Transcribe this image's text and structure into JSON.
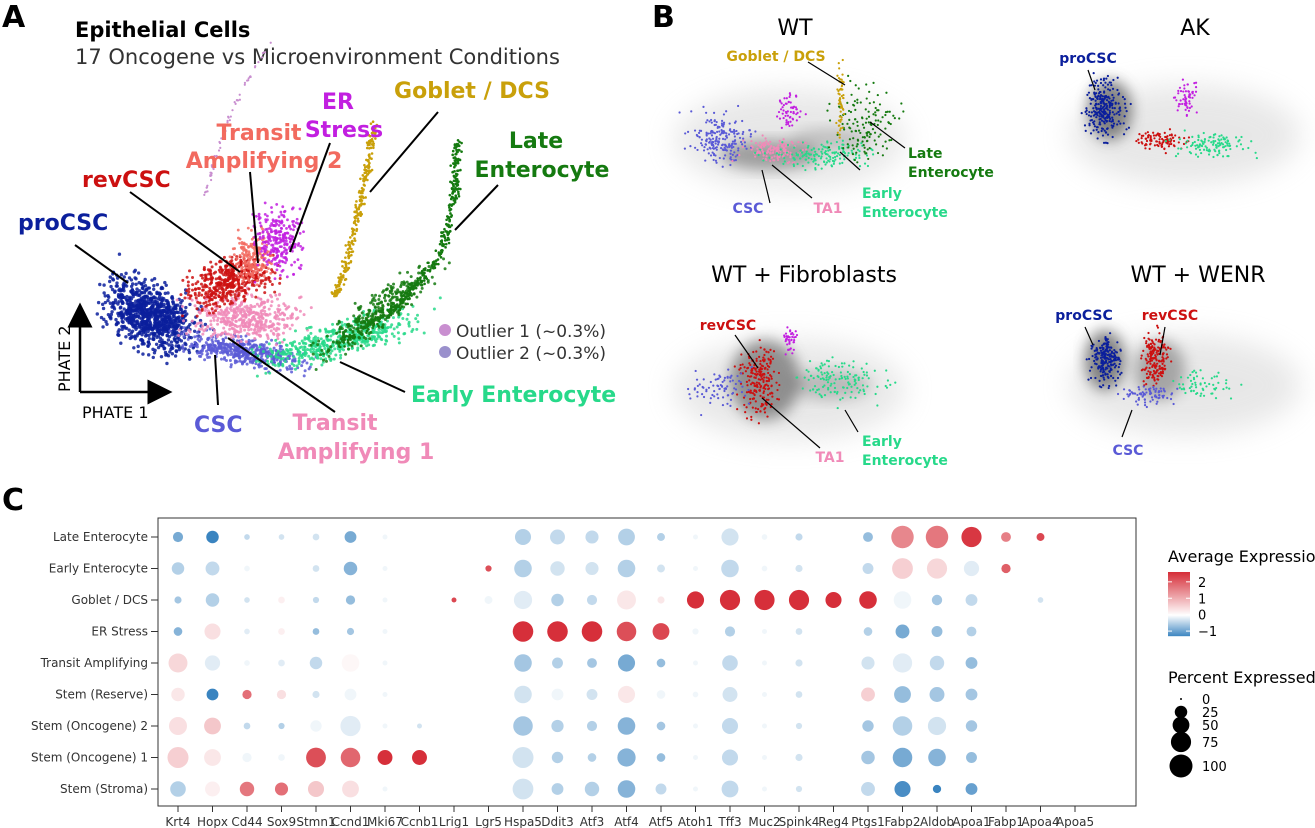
{
  "panel_letters": [
    "A",
    "B",
    "C"
  ],
  "panel_a": {
    "title": "Epithelial Cells",
    "subtitle": "17 Oncogene vs Microenvironment Conditions",
    "axis_x_label": "PHATE 1",
    "axis_y_label": "PHATE 2",
    "clusters": [
      {
        "label": "proCSC",
        "color": "#0b1f9c"
      },
      {
        "label": "revCSC",
        "color": "#cc1010"
      },
      {
        "label": "Transit Amplifying 2",
        "line1": "Transit",
        "line2": "Amplifying 2",
        "color": "#f26a5f"
      },
      {
        "label": "ER Stress",
        "line1": "ER",
        "line2": "Stress",
        "color": "#c21fe0"
      },
      {
        "label": "Goblet / DCS",
        "color": "#c9a00a"
      },
      {
        "label": "Late Enterocyte",
        "line1": "Late",
        "line2": "Enterocyte",
        "color": "#157a10"
      },
      {
        "label": "Early Enterocyte",
        "color": "#27d98a"
      },
      {
        "label": "CSC",
        "color": "#5a5ad6"
      },
      {
        "label": "Transit Amplifying 1",
        "line1": "Transit",
        "line2": "Amplifying 1",
        "color": "#f08ab8"
      }
    ],
    "outliers": [
      {
        "label": "Outlier 1 (~0.3%)",
        "color": "#c98fd0"
      },
      {
        "label": "Outlier 2 (~0.3%)",
        "color": "#9a90cc"
      }
    ]
  },
  "panel_b": {
    "subplots": [
      {
        "title": "WT",
        "labels": [
          "Goblet / DCS",
          "Late Enterocyte",
          "CSC",
          "TA1",
          "Early Enterocyte"
        ]
      },
      {
        "title": "AK",
        "labels": [
          "proCSC"
        ]
      },
      {
        "title": "WT + Fibroblasts",
        "labels": [
          "revCSC",
          "TA1",
          "Early Enterocyte"
        ]
      },
      {
        "title": "WT + WENR",
        "labels": [
          "proCSC",
          "revCSC",
          "CSC"
        ]
      }
    ]
  },
  "chart_data": {
    "type": "dot",
    "genes": [
      "Krt4",
      "Hopx",
      "Cd44",
      "Sox9",
      "Stmn1",
      "Ccnd1",
      "Mki67",
      "Ccnb1",
      "Lrig1",
      "Lgr5",
      "Hspa5",
      "Ddit3",
      "Atf3",
      "Atf4",
      "Atf5",
      "Atoh1",
      "Tff3",
      "Muc2",
      "Spink4",
      "Reg4",
      "Ptgs1",
      "Fabp2",
      "Aldob",
      "Apoa1",
      "Fabp1",
      "Apoa4",
      "Apoa5"
    ],
    "groups": [
      "Late Enterocyte",
      "Early Enterocyte",
      "Goblet / DCS",
      "ER Stress",
      "Transit Amplifying",
      "Stem (Reserve)",
      "Stem (Oncogene) 2",
      "Stem (Oncogene) 1",
      "Stem (Stroma)"
    ],
    "percent_expressed": [
      [
        15,
        25,
        3,
        3,
        5,
        22,
        2,
        2,
        2,
        1,
        45,
        38,
        28,
        50,
        8,
        2,
        52,
        3,
        6,
        2,
        14,
        95,
        95,
        75,
        14,
        8,
        2
      ],
      [
        25,
        32,
        3,
        3,
        5,
        30,
        2,
        2,
        2,
        4,
        55,
        35,
        28,
        55,
        8,
        2,
        55,
        3,
        6,
        2,
        18,
        80,
        75,
        40,
        12,
        2,
        2
      ],
      [
        6,
        30,
        3,
        5,
        4,
        12,
        2,
        2,
        2,
        8,
        60,
        25,
        15,
        65,
        6,
        52,
        75,
        75,
        75,
        45,
        55,
        55,
        16,
        22,
        2,
        3,
        2
      ],
      [
        10,
        45,
        3,
        5,
        5,
        6,
        2,
        2,
        2,
        2,
        78,
        78,
        78,
        70,
        50,
        4,
        15,
        2,
        5,
        2,
        10,
        32,
        18,
        14,
        3,
        2,
        2
      ],
      [
        65,
        40,
        3,
        5,
        25,
        55,
        2,
        2,
        2,
        2,
        55,
        18,
        14,
        52,
        10,
        2,
        42,
        2,
        6,
        2,
        28,
        68,
        35,
        22,
        3,
        2,
        2
      ],
      [
        30,
        22,
        12,
        12,
        6,
        22,
        2,
        2,
        2,
        2,
        55,
        22,
        18,
        52,
        10,
        3,
        38,
        2,
        5,
        2,
        32,
        50,
        38,
        22,
        3,
        2,
        2
      ],
      [
        58,
        50,
        5,
        4,
        20,
        75,
        2,
        2,
        2,
        2,
        70,
        24,
        15,
        55,
        10,
        2,
        45,
        2,
        4,
        2,
        20,
        70,
        60,
        20,
        3,
        2,
        2
      ],
      [
        82,
        50,
        12,
        5,
        72,
        70,
        38,
        38,
        2,
        2,
        82,
        20,
        10,
        60,
        10,
        2,
        45,
        2,
        6,
        2,
        30,
        70,
        55,
        18,
        3,
        2,
        2
      ],
      [
        42,
        38,
        35,
        28,
        45,
        50,
        2,
        2,
        2,
        2,
        80,
        22,
        35,
        55,
        18,
        2,
        50,
        2,
        4,
        2,
        32,
        45,
        9,
        22,
        2,
        2,
        2
      ]
    ],
    "average_expression": [
      [
        -0.9,
        -1.4,
        -0.4,
        -0.3,
        -0.3,
        -0.9,
        -0.1,
        0,
        0,
        0,
        -0.5,
        -0.4,
        -0.4,
        -0.5,
        -0.5,
        -0.1,
        -0.3,
        -0.1,
        -0.4,
        0,
        -0.7,
        1.5,
        1.7,
        2.5,
        1.6,
        2.3,
        0
      ],
      [
        -0.5,
        -0.4,
        -0.1,
        0,
        -0.3,
        -0.8,
        -0.1,
        0,
        0,
        2.2,
        -0.5,
        -0.3,
        -0.3,
        -0.5,
        -0.3,
        -0.1,
        -0.4,
        -0.1,
        -0.3,
        0,
        -0.4,
        0.6,
        0.5,
        -0.2,
        2.0,
        0,
        0
      ],
      [
        -0.6,
        -0.5,
        -0.3,
        0.2,
        -0.4,
        -0.7,
        -0.1,
        0,
        2.3,
        -0.1,
        -0.2,
        -0.5,
        -0.4,
        0.3,
        0.3,
        2.8,
        2.8,
        2.8,
        2.8,
        2.8,
        2.6,
        -0.1,
        -0.6,
        -0.4,
        0,
        -0.3,
        0
      ],
      [
        -0.8,
        0.4,
        -0.2,
        0.2,
        -0.7,
        -0.6,
        -0.1,
        0,
        0,
        0,
        2.8,
        2.8,
        2.8,
        2.2,
        2.3,
        -0.1,
        -0.5,
        -0.1,
        -0.3,
        0,
        -0.5,
        -0.9,
        -0.7,
        -0.5,
        0,
        0,
        0
      ],
      [
        0.5,
        -0.2,
        -0.1,
        -0.2,
        -0.4,
        0.1,
        -0.1,
        0,
        0,
        0,
        -0.6,
        -0.5,
        -0.6,
        -0.9,
        -0.7,
        -0.1,
        -0.4,
        -0.1,
        -0.3,
        0,
        -0.3,
        -0.2,
        -0.4,
        -0.7,
        0,
        0,
        0
      ],
      [
        0.3,
        -1.4,
        1.8,
        0.4,
        -0.3,
        -0.1,
        -0.1,
        0,
        0,
        0,
        -0.3,
        -0.1,
        -0.3,
        0.3,
        -0.1,
        -0.1,
        -0.3,
        -0.1,
        -0.3,
        0,
        0.6,
        -0.7,
        -0.6,
        -0.6,
        0,
        0,
        0
      ],
      [
        0.4,
        0.7,
        -0.4,
        -0.5,
        -0.1,
        -0.2,
        -0.1,
        -0.3,
        0,
        0,
        -0.6,
        -0.5,
        -0.5,
        -0.8,
        -0.6,
        -0.1,
        -0.4,
        -0.1,
        -0.3,
        0,
        -0.6,
        -0.5,
        -0.3,
        -0.6,
        0,
        0,
        0
      ],
      [
        0.6,
        0.3,
        -0.1,
        -0.1,
        2.2,
        1.9,
        3.0,
        3.0,
        0,
        0,
        -0.3,
        -0.5,
        -0.5,
        -0.8,
        -0.7,
        -0.1,
        -0.4,
        -0.1,
        -0.3,
        0,
        -0.6,
        -0.9,
        -0.8,
        -0.7,
        0,
        0,
        0
      ],
      [
        -0.5,
        0.2,
        1.7,
        1.8,
        0.7,
        0.4,
        -0.1,
        0,
        0,
        0,
        -0.3,
        -0.5,
        -0.5,
        -0.8,
        -0.4,
        -0.1,
        -0.4,
        -0.1,
        -0.3,
        0,
        -0.4,
        -1.2,
        -1.4,
        -1.0,
        0,
        0,
        0
      ]
    ],
    "color_scale": {
      "low": "#3a84c0",
      "mid": "#ffffff",
      "high": "#d62f3a",
      "min": -1.3,
      "max": 2.6
    },
    "legend_color": {
      "title": "Average Expression",
      "ticks": [
        "2",
        "1",
        "0",
        "−1"
      ],
      "tick_values": [
        2,
        1,
        0,
        -1
      ]
    },
    "legend_size": {
      "title": "Percent Expressed",
      "ticks": [
        "0",
        "25",
        "50",
        "75",
        "100"
      ],
      "tick_values": [
        0,
        25,
        50,
        75,
        100
      ]
    }
  }
}
